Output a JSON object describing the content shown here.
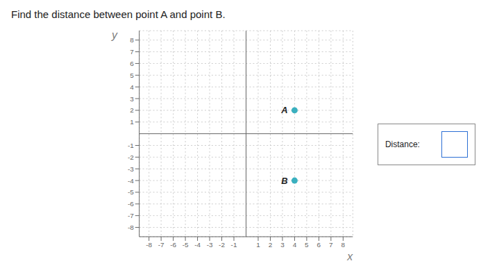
{
  "chart_data": {
    "type": "scatter",
    "title": "Find the distance between point A and point B.",
    "x": [
      4,
      4
    ],
    "values": [
      2,
      -4
    ],
    "color": "#3ab0bf",
    "xlabel": "x",
    "ylabel": "y",
    "xlim": [
      -8.8,
      8.8
    ],
    "ylim": [
      -8.8,
      8.8
    ],
    "xticks": [
      -8,
      -7,
      -6,
      -5,
      -4,
      -3,
      -2,
      -1,
      1,
      2,
      3,
      4,
      5,
      6,
      7,
      8
    ],
    "yticks": [
      -8,
      -7,
      -6,
      -5,
      -4,
      -3,
      -2,
      -1,
      1,
      2,
      3,
      4,
      5,
      6,
      7,
      8
    ],
    "grid": true,
    "annotations": [
      {
        "text": "A",
        "x": 4,
        "y": 2
      },
      {
        "text": "B",
        "x": 4,
        "y": -4
      },
      {
        "text": "Distance:"
      }
    ]
  }
}
